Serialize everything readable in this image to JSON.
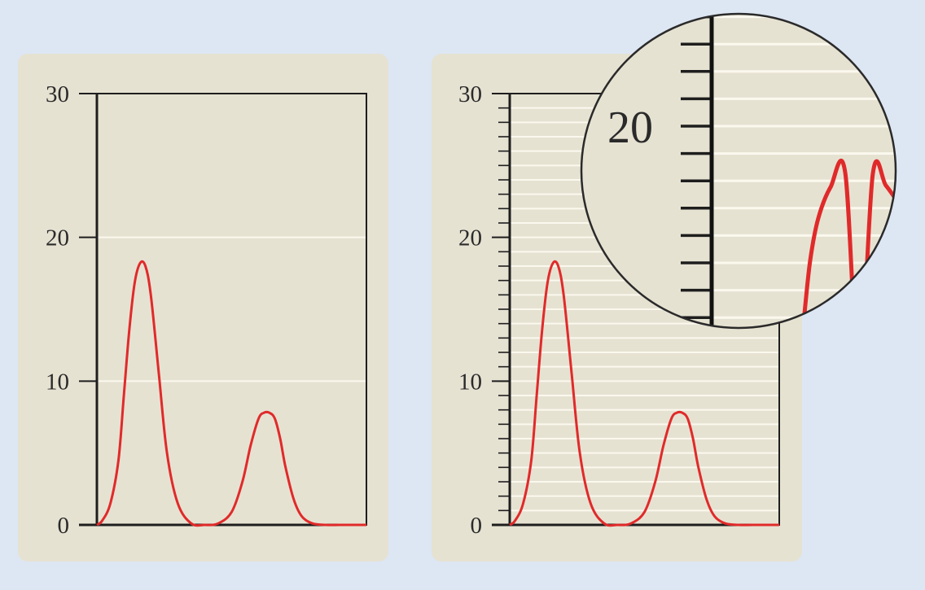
{
  "chart_data": [
    {
      "type": "line",
      "ylim": [
        0,
        30
      ],
      "yticks": [
        "0",
        "10",
        "20",
        "30"
      ],
      "minor_ticks": false,
      "gridlines": [
        10,
        20
      ],
      "series": [
        {
          "x": [
            0,
            0.2,
            0.5,
            0.8,
            1.0,
            1.2,
            1.4,
            1.6,
            1.8,
            2.0,
            2.3,
            2.6,
            3.0,
            3.5,
            4.0,
            4.5,
            5.0,
            5.4,
            5.7,
            6.0,
            6.2,
            6.4,
            6.6,
            6.8,
            7.0,
            7.3,
            7.6,
            8.0,
            8.5,
            9.0,
            9.5,
            10.0
          ],
          "y": [
            0,
            0.3,
            1.5,
            4.5,
            9.0,
            13.5,
            16.8,
            18.2,
            18.0,
            16.0,
            10.5,
            5.0,
            1.5,
            0.1,
            0.0,
            0.1,
            0.9,
            3.0,
            5.5,
            7.4,
            7.8,
            7.8,
            7.4,
            6.0,
            4.0,
            1.8,
            0.6,
            0.1,
            0.0,
            0.0,
            0.0,
            0.0
          ]
        }
      ],
      "color": "#e02a2a"
    },
    {
      "type": "line",
      "ylim": [
        0,
        30
      ],
      "yticks": [
        "0",
        "10",
        "20",
        "30"
      ],
      "minor_ticks": true,
      "minor_tick_step": 1,
      "gridlines_every": 1,
      "series": [
        {
          "x": [
            0,
            0.2,
            0.5,
            0.8,
            1.0,
            1.2,
            1.4,
            1.6,
            1.8,
            2.0,
            2.3,
            2.6,
            3.0,
            3.5,
            4.0,
            4.5,
            5.0,
            5.4,
            5.7,
            6.0,
            6.2,
            6.4,
            6.6,
            6.8,
            7.0,
            7.3,
            7.6,
            8.0,
            8.5,
            9.0,
            9.5,
            10.0
          ],
          "y": [
            0,
            0.3,
            1.5,
            4.5,
            9.0,
            13.5,
            16.8,
            18.2,
            18.0,
            16.0,
            10.5,
            5.0,
            1.5,
            0.1,
            0.0,
            0.1,
            0.9,
            3.0,
            5.5,
            7.4,
            7.8,
            7.8,
            7.4,
            6.0,
            4.0,
            1.8,
            0.6,
            0.1,
            0.0,
            0.0,
            0.0,
            0.0
          ]
        }
      ],
      "color": "#e02a2a"
    }
  ],
  "magnifier": {
    "label": "20",
    "y_range": [
      18,
      22
    ],
    "peak_value": 18.2
  },
  "colors": {
    "panel": "#e6e2d2",
    "background": "#dde6f3",
    "curve": "#e02a2a",
    "axis": "#1e1e1e",
    "grid": "#fbf8ee"
  }
}
